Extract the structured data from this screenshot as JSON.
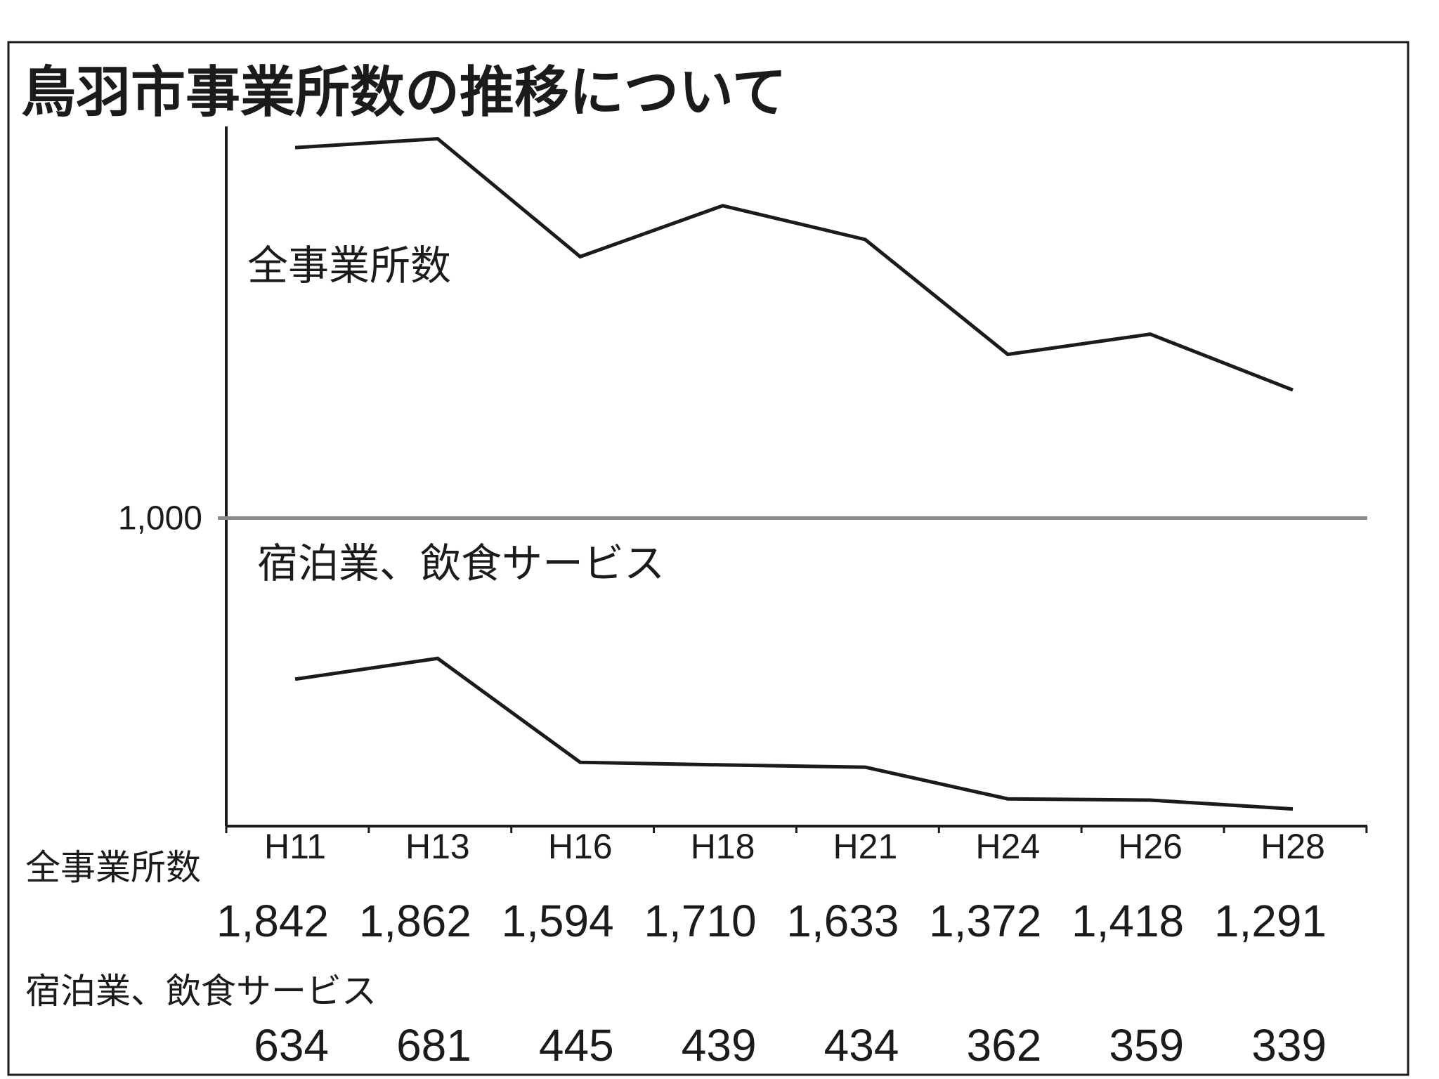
{
  "chart_data": {
    "type": "line",
    "title": "鳥羽市事業所数の推移について",
    "categories": [
      "H11",
      "H13",
      "H16",
      "H18",
      "H21",
      "H24",
      "H26",
      "H28"
    ],
    "series": [
      {
        "name": "全事業所数",
        "values": [
          1842,
          1862,
          1594,
          1710,
          1633,
          1372,
          1418,
          1291
        ],
        "value_labels": [
          "1,842",
          "1,862",
          "1,594",
          "1,710",
          "1,633",
          "1,372",
          "1,418",
          "1,291"
        ]
      },
      {
        "name": "宿泊業、飲食サービス",
        "values": [
          634,
          681,
          445,
          439,
          434,
          362,
          359,
          339
        ],
        "value_labels": [
          "634",
          "681",
          "445",
          "439",
          "434",
          "362",
          "359",
          "339"
        ]
      }
    ],
    "reference_line": {
      "value": 1000,
      "label": "1,000"
    },
    "ylim": [
      300,
      1890
    ],
    "grid": false,
    "line_color": "#1b1b1b",
    "reference_line_color": "#8a8a8a"
  }
}
